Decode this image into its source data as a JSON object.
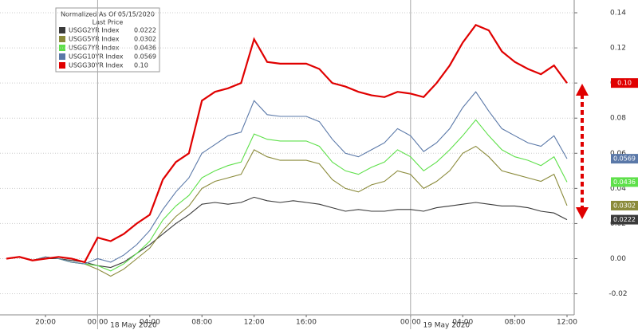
{
  "chart_data": {
    "type": "line",
    "legend_title": "Normalized As Of 05/15/2020",
    "legend_header": "Last Price",
    "categories": [
      null,
      null,
      null,
      "20:00",
      null,
      null,
      null,
      "00:00",
      null,
      null,
      null,
      "04:00",
      null,
      null,
      null,
      "08:00",
      null,
      null,
      null,
      "12:00",
      null,
      null,
      null,
      "16:00",
      null,
      null,
      null,
      null,
      null,
      null,
      null,
      "00:00",
      null,
      null,
      null,
      "04:00",
      null,
      null,
      null,
      "08:00",
      null,
      null,
      null,
      "12:00"
    ],
    "x_date_labels": [
      "18 May 2020",
      "19 May 2020"
    ],
    "series": [
      {
        "name": "USGG2YR Index",
        "last_label": "0.0222",
        "color": "#3a3a3a",
        "values": [
          0,
          0.001,
          -0.001,
          0,
          0,
          -0.001,
          -0.002,
          -0.004,
          -0.005,
          -0.002,
          0.003,
          0.008,
          0.014,
          0.02,
          0.025,
          0.031,
          0.032,
          0.031,
          0.032,
          0.035,
          0.033,
          0.032,
          0.033,
          0.032,
          0.031,
          0.029,
          0.027,
          0.028,
          0.027,
          0.027,
          0.028,
          0.028,
          0.027,
          0.029,
          0.03,
          0.031,
          0.032,
          0.031,
          0.03,
          0.03,
          0.029,
          0.027,
          0.026,
          0.0222
        ]
      },
      {
        "name": "USGG5YR Index",
        "last_label": "0.0302",
        "color": "#8a8a3a",
        "values": [
          0,
          0.001,
          -0.001,
          0.001,
          0,
          -0.002,
          -0.003,
          -0.006,
          -0.01,
          -0.006,
          0,
          0.006,
          0.016,
          0.024,
          0.03,
          0.04,
          0.044,
          0.046,
          0.048,
          0.062,
          0.058,
          0.056,
          0.056,
          0.056,
          0.054,
          0.045,
          0.04,
          0.038,
          0.042,
          0.044,
          0.05,
          0.048,
          0.04,
          0.044,
          0.05,
          0.06,
          0.064,
          0.058,
          0.05,
          0.048,
          0.046,
          0.044,
          0.048,
          0.0302
        ]
      },
      {
        "name": "USGG7YR Index",
        "last_label": "0.0436",
        "color": "#5ee04a",
        "values": [
          0,
          0.001,
          -0.001,
          0.001,
          0,
          -0.002,
          -0.003,
          -0.004,
          -0.007,
          -0.003,
          0.003,
          0.01,
          0.022,
          0.03,
          0.036,
          0.046,
          0.05,
          0.053,
          0.055,
          0.071,
          0.068,
          0.067,
          0.067,
          0.067,
          0.064,
          0.055,
          0.05,
          0.048,
          0.052,
          0.055,
          0.062,
          0.058,
          0.05,
          0.055,
          0.062,
          0.07,
          0.079,
          0.07,
          0.062,
          0.058,
          0.056,
          0.053,
          0.058,
          0.0436
        ]
      },
      {
        "name": "USGG10YR Index",
        "last_label": "0.0569",
        "color": "#5a78a8",
        "values": [
          0,
          0.001,
          -0.001,
          0.001,
          0,
          -0.002,
          -0.003,
          0,
          -0.002,
          0.002,
          0.008,
          0.016,
          0.028,
          0.038,
          0.046,
          0.06,
          0.065,
          0.07,
          0.072,
          0.09,
          0.082,
          0.081,
          0.081,
          0.081,
          0.078,
          0.068,
          0.06,
          0.058,
          0.062,
          0.066,
          0.074,
          0.07,
          0.061,
          0.066,
          0.074,
          0.086,
          0.095,
          0.084,
          0.074,
          0.07,
          0.066,
          0.064,
          0.07,
          0.0569
        ]
      },
      {
        "name": "USGG30YR Index",
        "last_label": "0.10",
        "color": "#e00000",
        "values": [
          0,
          0.001,
          -0.001,
          0,
          0.001,
          0,
          -0.002,
          0.012,
          0.01,
          0.014,
          0.02,
          0.025,
          0.045,
          0.055,
          0.06,
          0.09,
          0.095,
          0.097,
          0.1,
          0.125,
          0.112,
          0.111,
          0.111,
          0.111,
          0.108,
          0.1,
          0.098,
          0.095,
          0.093,
          0.092,
          0.095,
          0.094,
          0.092,
          0.1,
          0.11,
          0.123,
          0.133,
          0.13,
          0.118,
          0.112,
          0.108,
          0.105,
          0.11,
          0.1
        ]
      }
    ],
    "ylim": [
      -0.032,
      0.145
    ],
    "yticks": [
      -0.02,
      {
        "value": 0,
        "label": "0.00"
      },
      0.02,
      0.04,
      0.06,
      0.08,
      {
        "value": 0.1,
        "label": "0.10"
      },
      0.12,
      0.14
    ],
    "grid": true
  }
}
